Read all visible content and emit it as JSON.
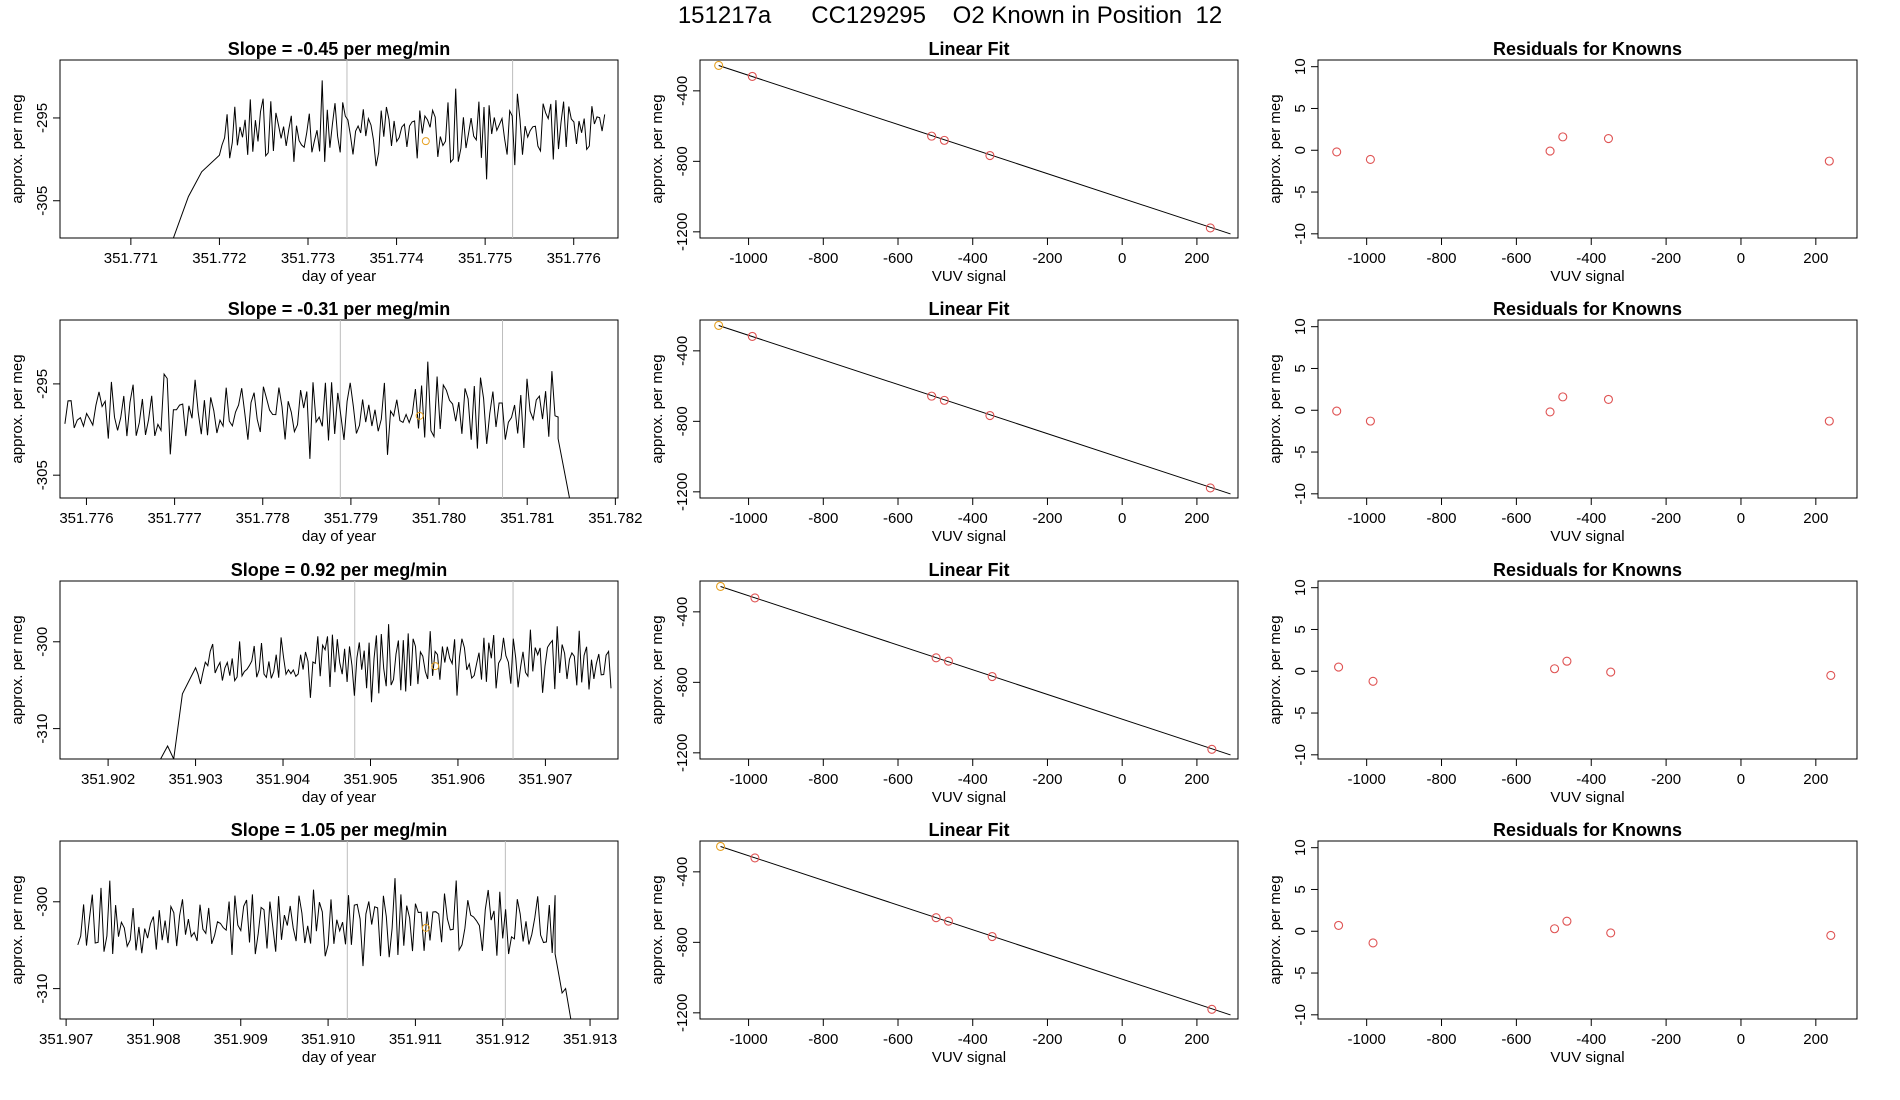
{
  "figure": {
    "title": "151217a      CC129295    O2 Known in Position  12"
  },
  "chart_data": [
    {
      "type": "line",
      "title": "Slope =  -0.45  per meg/min",
      "xlabel": "day of year",
      "ylabel": "approx. per meg",
      "xlim": [
        351.7702,
        351.7765
      ],
      "ylim": [
        -309.5,
        -288
      ],
      "xticks": [
        "351.771",
        "351.772",
        "351.773",
        "351.774",
        "351.775",
        "351.776"
      ],
      "yticks": [
        "-295",
        "-305"
      ],
      "ytick_values": [
        -295,
        -305
      ],
      "vlines": [
        351.77344,
        351.77531
      ],
      "marker": {
        "x": 351.77433,
        "y": -297.8
      },
      "series_seed": 11,
      "series": [
        {
          "name": "",
          "x_start": 351.77135,
          "x_end": 351.77635,
          "n": 150,
          "mean": -296.6,
          "amp": 4.0,
          "ramp": [
            [
              351.77135,
              -309.5
            ],
            [
              351.77148,
              -309.5
            ],
            [
              351.77165,
              -304.5
            ],
            [
              351.7718,
              -301.5
            ],
            [
              351.772,
              -299.5
            ]
          ]
        }
      ]
    },
    {
      "type": "scatter",
      "title": "Linear Fit",
      "xlabel": "VUV signal",
      "ylabel": "approx. per meg",
      "xlim": [
        -1130,
        310
      ],
      "ylim": [
        -1235,
        -225
      ],
      "xticks": [
        "-1000",
        "-800",
        "-600",
        "-400",
        "-200",
        "0",
        "200"
      ],
      "xtick_values": [
        -1000,
        -800,
        -600,
        -400,
        -200,
        0,
        200
      ],
      "yticks": [
        "-400",
        "-800",
        "-1200"
      ],
      "ytick_values": [
        -400,
        -800,
        -1200
      ],
      "fit_line": {
        "x": [
          -1080,
          290
        ],
        "y": [
          -256,
          -1212
        ]
      },
      "points_known": {
        "x": [
          -990,
          -510,
          -476,
          -354,
          236
        ],
        "y": [
          -318,
          -657,
          -681,
          -767,
          -1178
        ]
      },
      "points_highlight": {
        "x": [
          -1080
        ],
        "y": [
          -256
        ]
      }
    },
    {
      "type": "scatter",
      "title": "Residuals for Knowns",
      "xlabel": "VUV signal",
      "ylabel": "approx. per meg",
      "xlim": [
        -1130,
        310
      ],
      "ylim": [
        -10.5,
        10.8
      ],
      "xticks": [
        "-1000",
        "-800",
        "-600",
        "-400",
        "-200",
        "0",
        "200"
      ],
      "xtick_values": [
        -1000,
        -800,
        -600,
        -400,
        -200,
        0,
        200
      ],
      "yticks": [
        "-10",
        "-5",
        "0",
        "5",
        "10"
      ],
      "ytick_values": [
        -10,
        -5,
        0,
        5,
        10
      ],
      "points": {
        "x": [
          -1080,
          -990,
          -510,
          -476,
          -354,
          236
        ],
        "y": [
          -0.2,
          -1.1,
          -0.1,
          1.6,
          1.4,
          -1.3
        ]
      }
    },
    {
      "type": "line",
      "title": "Slope =  -0.31  per meg/min",
      "xlabel": "day of year",
      "ylabel": "approx. per meg",
      "xlim": [
        351.7757,
        351.78203
      ],
      "ylim": [
        -307.5,
        -288
      ],
      "xticks": [
        "351.776",
        "351.777",
        "351.778",
        "351.779",
        "351.780",
        "351.781",
        "351.782"
      ],
      "yticks": [
        "-295",
        "-305"
      ],
      "ytick_values": [
        -295,
        -305
      ],
      "vlines": [
        351.77888,
        351.78072
      ],
      "marker": {
        "x": 351.77978,
        "y": -298.5
      },
      "series_seed": 23,
      "series": [
        {
          "name": "",
          "x_start": 351.77572,
          "x_end": 351.78148,
          "n": 160,
          "mean": -297.9,
          "amp": 3.6,
          "tail": [
            [
              351.78135,
              -301
            ],
            [
              351.78148,
              -307.5
            ]
          ]
        }
      ]
    },
    {
      "type": "scatter",
      "title": "Linear Fit",
      "xlabel": "VUV signal",
      "ylabel": "approx. per meg",
      "xlim": [
        -1130,
        310
      ],
      "ylim": [
        -1235,
        -225
      ],
      "xticks": [
        "-1000",
        "-800",
        "-600",
        "-400",
        "-200",
        "0",
        "200"
      ],
      "xtick_values": [
        -1000,
        -800,
        -600,
        -400,
        -200,
        0,
        200
      ],
      "yticks": [
        "-400",
        "-800",
        "-1200"
      ],
      "ytick_values": [
        -400,
        -800,
        -1200
      ],
      "fit_line": {
        "x": [
          -1080,
          290
        ],
        "y": [
          -256,
          -1212
        ]
      },
      "points_known": {
        "x": [
          -990,
          -510,
          -476,
          -354,
          236
        ],
        "y": [
          -318,
          -657,
          -681,
          -767,
          -1178
        ]
      },
      "points_highlight": {
        "x": [
          -1080
        ],
        "y": [
          -256
        ]
      }
    },
    {
      "type": "scatter",
      "title": "Residuals for Knowns",
      "xlabel": "VUV signal",
      "ylabel": "approx. per meg",
      "xlim": [
        -1130,
        310
      ],
      "ylim": [
        -10.5,
        10.8
      ],
      "xticks": [
        "-1000",
        "-800",
        "-600",
        "-400",
        "-200",
        "0",
        "200"
      ],
      "xtick_values": [
        -1000,
        -800,
        -600,
        -400,
        -200,
        0,
        200
      ],
      "yticks": [
        "-10",
        "-5",
        "0",
        "5",
        "10"
      ],
      "ytick_values": [
        -10,
        -5,
        0,
        5,
        10
      ],
      "points": {
        "x": [
          -1080,
          -990,
          -510,
          -476,
          -354,
          236
        ],
        "y": [
          -0.1,
          -1.3,
          -0.2,
          1.6,
          1.3,
          -1.3
        ]
      }
    },
    {
      "type": "line",
      "title": "Slope =  0.92  per meg/min",
      "xlabel": "day of year",
      "ylabel": "approx. per meg",
      "xlim": [
        351.90145,
        351.90783
      ],
      "ylim": [
        -313.5,
        -293
      ],
      "xticks": [
        "351.902",
        "351.903",
        "351.904",
        "351.905",
        "351.906",
        "351.907"
      ],
      "yticks": [
        "-300",
        "-310"
      ],
      "ytick_values": [
        -300,
        -310
      ],
      "vlines": [
        351.90482,
        351.90663
      ],
      "marker": {
        "x": 351.90574,
        "y": -302.8
      },
      "series_seed": 37,
      "series": [
        {
          "name": "",
          "x_start": 351.90148,
          "x_end": 351.90775,
          "n": 170,
          "mean": -302.3,
          "amp": 3.6,
          "ramp": [
            [
              351.90148,
              -313.5
            ],
            [
              351.9026,
              -313.5
            ],
            [
              351.90268,
              -312
            ],
            [
              351.90275,
              -313.5
            ],
            [
              351.90285,
              -306
            ],
            [
              351.903,
              -303
            ]
          ]
        }
      ]
    },
    {
      "type": "scatter",
      "title": "Linear Fit",
      "xlabel": "VUV signal",
      "ylabel": "approx. per meg",
      "xlim": [
        -1130,
        310
      ],
      "ylim": [
        -1235,
        -225
      ],
      "xticks": [
        "-1000",
        "-800",
        "-600",
        "-400",
        "-200",
        "0",
        "200"
      ],
      "xtick_values": [
        -1000,
        -800,
        -600,
        -400,
        -200,
        0,
        200
      ],
      "yticks": [
        "-400",
        "-800",
        "-1200"
      ],
      "ytick_values": [
        -400,
        -800,
        -1200
      ],
      "fit_line": {
        "x": [
          -1075,
          290
        ],
        "y": [
          -256,
          -1212
        ]
      },
      "points_known": {
        "x": [
          -983,
          -498,
          -465,
          -348,
          240
        ],
        "y": [
          -321,
          -661,
          -680,
          -767,
          -1180
        ]
      },
      "points_highlight": {
        "x": [
          -1075
        ],
        "y": [
          -256
        ]
      }
    },
    {
      "type": "scatter",
      "title": "Residuals for Knowns",
      "xlabel": "VUV signal",
      "ylabel": "approx. per meg",
      "xlim": [
        -1130,
        310
      ],
      "ylim": [
        -10.5,
        10.8
      ],
      "xticks": [
        "-1000",
        "-800",
        "-600",
        "-400",
        "-200",
        "0",
        "200"
      ],
      "xtick_values": [
        -1000,
        -800,
        -600,
        -400,
        -200,
        0,
        200
      ],
      "yticks": [
        "-10",
        "-5",
        "0",
        "5",
        "10"
      ],
      "ytick_values": [
        -10,
        -5,
        0,
        5,
        10
      ],
      "points": {
        "x": [
          -1075,
          -983,
          -498,
          -465,
          -348,
          240
        ],
        "y": [
          0.5,
          -1.2,
          0.3,
          1.2,
          -0.1,
          -0.5
        ]
      }
    },
    {
      "type": "line",
      "title": "Slope =  1.05  per meg/min",
      "xlabel": "day of year",
      "ylabel": "approx. per meg",
      "xlim": [
        351.90693,
        351.91332
      ],
      "ylim": [
        -313.5,
        -293
      ],
      "xticks": [
        "351.907",
        "351.908",
        "351.909",
        "351.910",
        "351.911",
        "351.912",
        "351.913"
      ],
      "yticks": [
        "-300",
        "-310"
      ],
      "ytick_values": [
        -300,
        -310
      ],
      "vlines": [
        351.91022,
        351.91203
      ],
      "marker": {
        "x": 351.91112,
        "y": -303
      },
      "series_seed": 53,
      "series": [
        {
          "name": "",
          "x_start": 351.9071,
          "x_end": 351.91275,
          "n": 165,
          "mean": -302.6,
          "amp": 3.8,
          "tail": [
            [
              351.9126,
              -306
            ],
            [
              351.91268,
              -310.5
            ],
            [
              351.91272,
              -310
            ],
            [
              351.91278,
              -313.5
            ]
          ]
        }
      ]
    },
    {
      "type": "scatter",
      "title": "Linear Fit",
      "xlabel": "VUV signal",
      "ylabel": "approx. per meg",
      "xlim": [
        -1130,
        310
      ],
      "ylim": [
        -1235,
        -225
      ],
      "xticks": [
        "-1000",
        "-800",
        "-600",
        "-400",
        "-200",
        "0",
        "200"
      ],
      "xtick_values": [
        -1000,
        -800,
        -600,
        -400,
        -200,
        0,
        200
      ],
      "yticks": [
        "-400",
        "-800",
        "-1200"
      ],
      "ytick_values": [
        -400,
        -800,
        -1200
      ],
      "fit_line": {
        "x": [
          -1075,
          290
        ],
        "y": [
          -256,
          -1212
        ]
      },
      "points_known": {
        "x": [
          -983,
          -498,
          -465,
          -348,
          240
        ],
        "y": [
          -321,
          -660,
          -680,
          -767,
          -1180
        ]
      },
      "points_highlight": {
        "x": [
          -1075
        ],
        "y": [
          -256
        ]
      }
    },
    {
      "type": "scatter",
      "title": "Residuals for Knowns",
      "xlabel": "VUV signal",
      "ylabel": "approx. per meg",
      "xlim": [
        -1130,
        310
      ],
      "ylim": [
        -10.5,
        10.8
      ],
      "xticks": [
        "-1000",
        "-800",
        "-600",
        "-400",
        "-200",
        "0",
        "200"
      ],
      "xtick_values": [
        -1000,
        -800,
        -600,
        -400,
        -200,
        0,
        200
      ],
      "yticks": [
        "-10",
        "-5",
        "0",
        "5",
        "10"
      ],
      "ytick_values": [
        -10,
        -5,
        0,
        5,
        10
      ],
      "points": {
        "x": [
          -1075,
          -983,
          -498,
          -465,
          -348,
          240
        ],
        "y": [
          0.7,
          -1.4,
          0.3,
          1.2,
          -0.2,
          -0.5
        ]
      }
    }
  ],
  "colors": {
    "line": "#000000",
    "axis": "#000000",
    "vline": "#bdbdbd",
    "known_point": "#df5353",
    "highlight_point": "#e6a020"
  }
}
